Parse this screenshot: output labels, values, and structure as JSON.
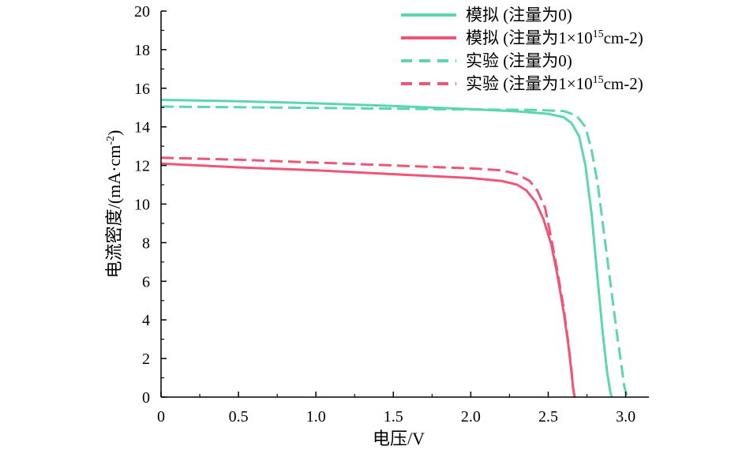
{
  "chart_data": {
    "type": "line",
    "xlabel": "电压/V",
    "ylabel_main": "电流密度/(mA·cm",
    "ylabel_sup": "-2",
    "ylabel_tail": ")",
    "xlim": [
      0,
      3.15
    ],
    "ylim": [
      0,
      20
    ],
    "xticks": [
      0,
      0.5,
      1.0,
      1.5,
      2.0,
      2.5,
      3.0
    ],
    "xtick_labels": [
      "0",
      "0.5",
      "1.0",
      "1.5",
      "2.0",
      "2.5",
      "3.0"
    ],
    "yticks": [
      0,
      2,
      4,
      6,
      8,
      10,
      12,
      14,
      16,
      18,
      20
    ],
    "ytick_labels": [
      "0",
      "2",
      "4",
      "6",
      "8",
      "10",
      "12",
      "14",
      "16",
      "18",
      "20"
    ],
    "legend_position": "top-right",
    "series": [
      {
        "label_prefix": "模拟 (注量为0)",
        "label_sup": "",
        "label_suffix": "",
        "color": "#5cd6b0",
        "dash": "solid",
        "x": [
          0,
          0.5,
          1.0,
          1.5,
          2.0,
          2.3,
          2.5,
          2.6,
          2.65,
          2.7,
          2.74,
          2.78,
          2.82,
          2.85,
          2.88,
          2.9,
          2.91
        ],
        "y": [
          15.4,
          15.33,
          15.22,
          15.08,
          14.92,
          14.8,
          14.68,
          14.5,
          14.2,
          13.5,
          12.0,
          9.5,
          6.0,
          3.5,
          1.3,
          0.3,
          0
        ]
      },
      {
        "label_prefix": "模拟 (注量为1×10",
        "label_sup": "15",
        "label_suffix": "cm-2)",
        "color": "#ef5577",
        "dash": "solid",
        "x": [
          0,
          0.5,
          1.0,
          1.5,
          2.0,
          2.2,
          2.3,
          2.36,
          2.42,
          2.47,
          2.52,
          2.56,
          2.6,
          2.63,
          2.65,
          2.66,
          2.67
        ],
        "y": [
          12.1,
          11.9,
          11.75,
          11.55,
          11.35,
          11.2,
          11.0,
          10.7,
          10.1,
          9.2,
          7.9,
          6.3,
          4.4,
          2.7,
          1.3,
          0.5,
          0
        ]
      },
      {
        "label_prefix": "实验 (注量为0)",
        "label_sup": "",
        "label_suffix": "",
        "color": "#5cd6b0",
        "dash": "dashed",
        "x": [
          0,
          0.5,
          1.0,
          1.5,
          2.0,
          2.4,
          2.6,
          2.68,
          2.74,
          2.78,
          2.82,
          2.86,
          2.9,
          2.94,
          2.97,
          2.99,
          3.01
        ],
        "y": [
          15.05,
          15.02,
          14.98,
          14.94,
          14.9,
          14.88,
          14.82,
          14.6,
          14.0,
          12.8,
          11.0,
          8.5,
          6.0,
          3.5,
          1.8,
          0.6,
          0
        ]
      },
      {
        "label_prefix": "实验 (注量为1×10",
        "label_sup": "15",
        "label_suffix": "cm-2)",
        "color": "#ef5577",
        "dash": "dashed",
        "x": [
          0,
          0.5,
          1.0,
          1.5,
          2.0,
          2.2,
          2.3,
          2.38,
          2.43,
          2.48,
          2.52,
          2.56,
          2.6,
          2.63,
          2.65,
          2.66,
          2.67
        ],
        "y": [
          12.4,
          12.3,
          12.15,
          12.0,
          11.85,
          11.75,
          11.55,
          11.2,
          10.7,
          9.8,
          8.2,
          6.5,
          4.6,
          2.8,
          1.4,
          0.5,
          0
        ]
      }
    ]
  }
}
